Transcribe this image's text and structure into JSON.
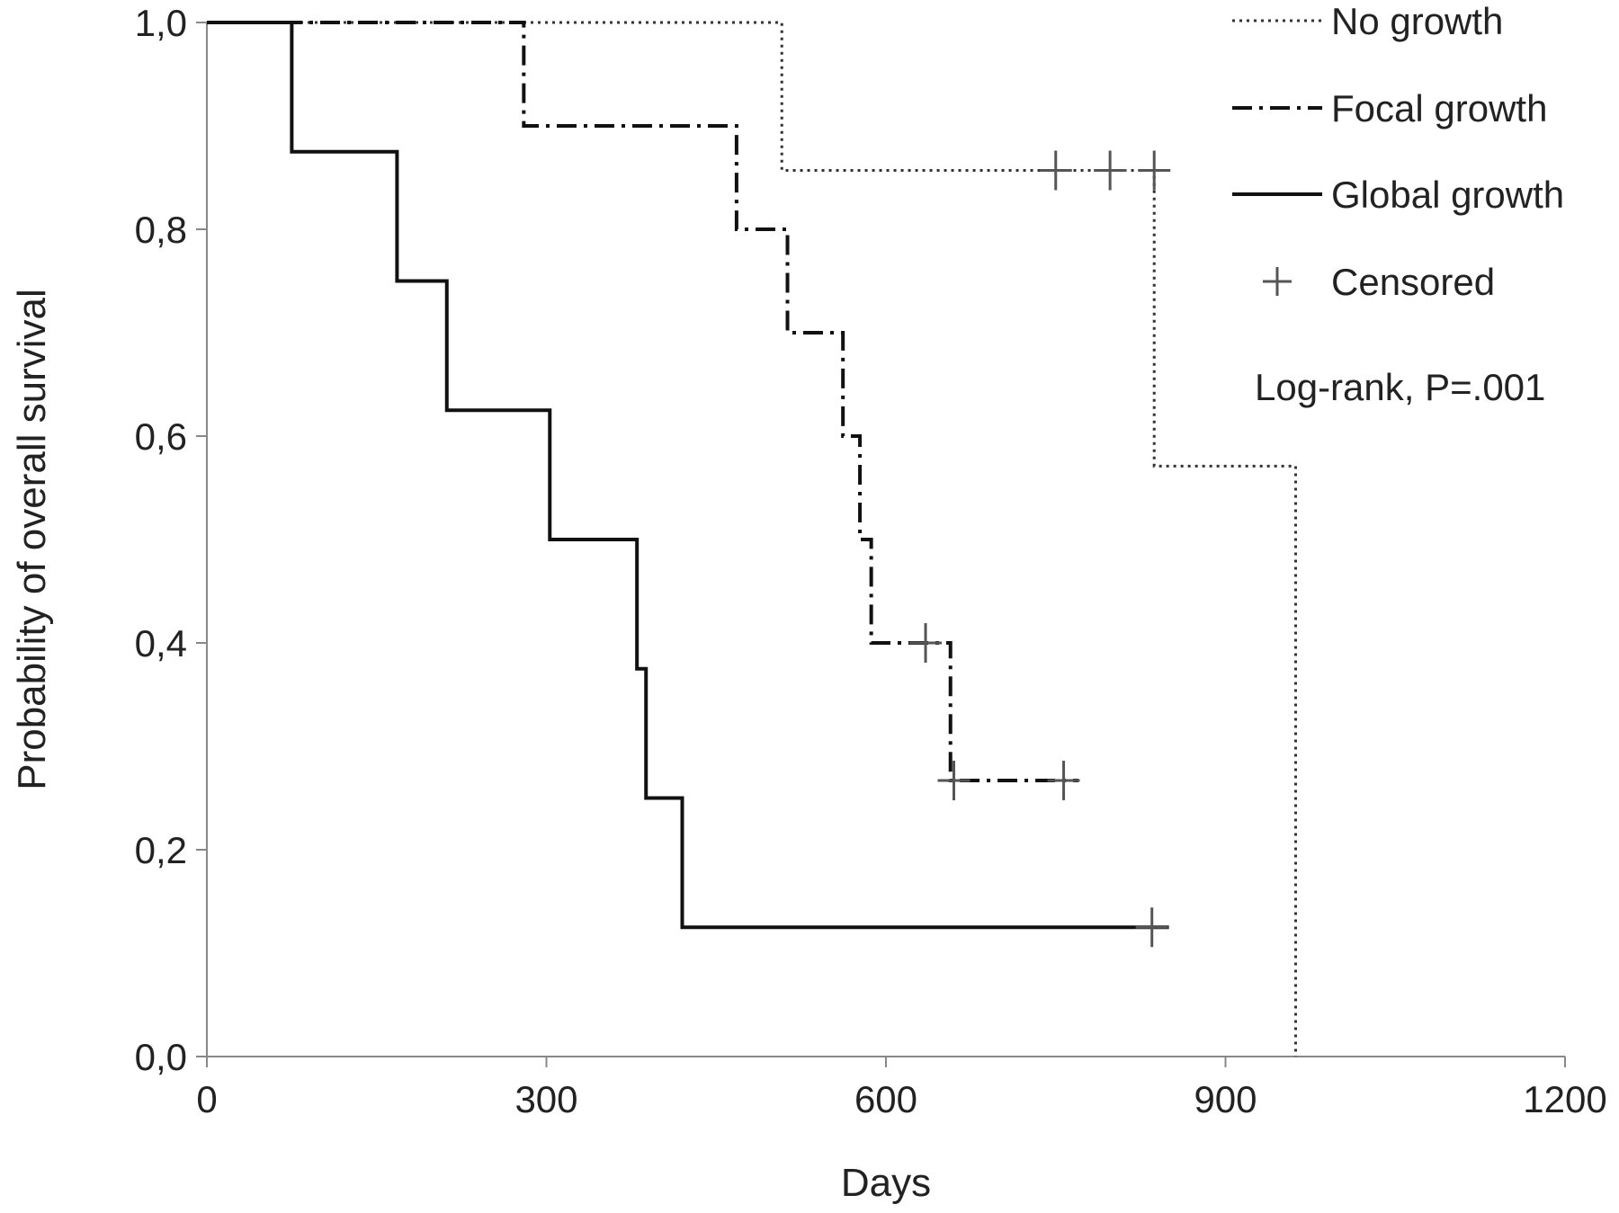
{
  "chart_data": {
    "type": "line",
    "xlabel": "Days",
    "ylabel": "Probability of overall survival",
    "xlim": [
      0,
      1200
    ],
    "ylim": [
      0,
      1.0
    ],
    "x_ticks": [
      0,
      300,
      600,
      900,
      1200
    ],
    "x_tick_labels": [
      "0",
      "300",
      "600",
      "900",
      "1200"
    ],
    "y_ticks": [
      0,
      0.2,
      0.4,
      0.6,
      0.8,
      1.0
    ],
    "y_tick_labels": [
      "0,0",
      "0,2",
      "0,4",
      "0,6",
      "0,8",
      "1,0"
    ],
    "grid": false,
    "legend_position": "top-right",
    "legend": [
      {
        "label": "No growth",
        "style": "dotted"
      },
      {
        "label": "Focal growth",
        "style": "dashdot"
      },
      {
        "label": "Global growth",
        "style": "solid"
      },
      {
        "label": "Censored",
        "style": "plus"
      }
    ],
    "annotation": "Log-rank, P=.001",
    "series": [
      {
        "name": "No growth",
        "style": "dotted",
        "steps": [
          [
            0,
            1.0
          ],
          [
            508,
            0.857
          ],
          [
            837,
            0.571
          ],
          [
            962,
            0.0
          ]
        ],
        "end_x": 962,
        "censored": [
          [
            750,
            0.857
          ],
          [
            798,
            0.857
          ],
          [
            837,
            0.857
          ]
        ]
      },
      {
        "name": "Focal growth",
        "style": "dashdot",
        "steps": [
          [
            0,
            1.0
          ],
          [
            280,
            0.9
          ],
          [
            468,
            0.8
          ],
          [
            513,
            0.7
          ],
          [
            562,
            0.6
          ],
          [
            577,
            0.5
          ],
          [
            587,
            0.4
          ],
          [
            657,
            0.267
          ]
        ],
        "end_x": 770,
        "censored": [
          [
            635,
            0.4
          ],
          [
            660,
            0.267
          ],
          [
            757,
            0.267
          ]
        ]
      },
      {
        "name": "Global growth",
        "style": "solid",
        "steps": [
          [
            0,
            1.0
          ],
          [
            75,
            0.875
          ],
          [
            168,
            0.75
          ],
          [
            212,
            0.625
          ],
          [
            303,
            0.5
          ],
          [
            380,
            0.375
          ],
          [
            388,
            0.25
          ],
          [
            420,
            0.125
          ]
        ],
        "end_x": 850,
        "censored": [
          [
            835,
            0.125
          ]
        ]
      }
    ]
  }
}
